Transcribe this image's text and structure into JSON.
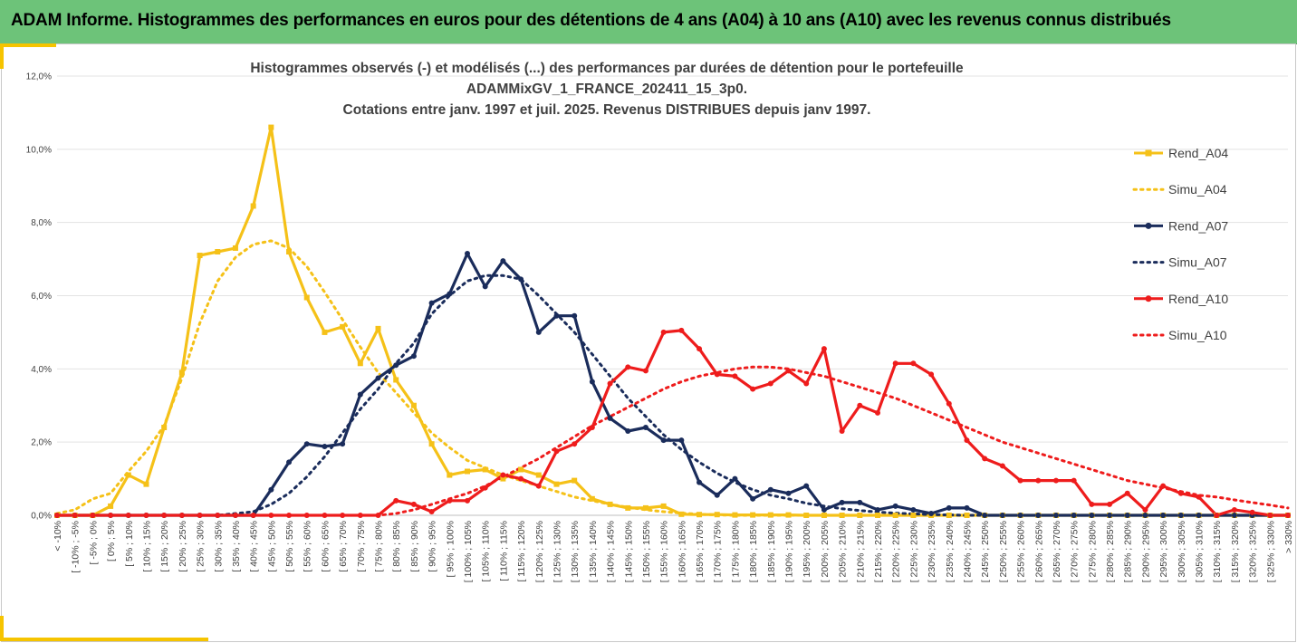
{
  "header": {
    "title": "ADAM Informe. Histogrammes des performances en euros pour des détentions de 4 ans (A04) à 10 ans (A10) avec les revenus connus distribués"
  },
  "chart_data": {
    "type": "line",
    "title_lines": [
      "Histogrammes observés (-) et modélisés (...) des performances par durées de détention pour le portefeuille",
      "ADAMMixGV_1_FRANCE_202411_15_3p0.",
      "Cotations entre janv. 1997 et juil. 2025. Revenus DISTRIBUES depuis janv 1997."
    ],
    "ylim": [
      0,
      12
    ],
    "y_ticks": [
      "0,0%",
      "2,0%",
      "4,0%",
      "6,0%",
      "8,0%",
      "10,0%",
      "12,0%"
    ],
    "y_tick_values": [
      0,
      2,
      4,
      6,
      8,
      10,
      12
    ],
    "grid": "horizontal",
    "legend_position": "right",
    "categories": [
      "< -10%",
      "[ -10% ; -5%",
      "[ -5% ; 0%",
      "[ 0% ; 5%",
      "[ 5% ; 10%",
      "[ 10% ; 15%",
      "[ 15% ; 20%",
      "[ 20% ; 25%",
      "[ 25% ; 30%",
      "[ 30% ; 35%",
      "[ 35% ; 40%",
      "[ 40% ; 45%",
      "[ 45% ; 50%",
      "[ 50% ; 55%",
      "[ 55% ; 60%",
      "[ 60% ; 65%",
      "[ 65% ; 70%",
      "[ 70% ; 75%",
      "[ 75% ; 80%",
      "[ 80% ; 85%",
      "[ 85% ; 90%",
      "[ 90% ; 95%",
      "[ 95% ; 100%",
      "[ 100% ; 105%",
      "[ 105% ; 110%",
      "[ 110% ; 115%",
      "[ 115% ; 120%",
      "[ 120% ; 125%",
      "[ 125% ; 130%",
      "[ 130% ; 135%",
      "[ 135% ; 140%",
      "[ 140% ; 145%",
      "[ 145% ; 150%",
      "[ 150% ; 155%",
      "[ 155% ; 160%",
      "[ 160% ; 165%",
      "[ 165% ; 170%",
      "[ 170% ; 175%",
      "[ 175% ; 180%",
      "[ 180% ; 185%",
      "[ 185% ; 190%",
      "[ 190% ; 195%",
      "[ 195% ; 200%",
      "[ 200% ; 205%",
      "[ 205% ; 210%",
      "[ 210% ; 215%",
      "[ 215% ; 220%",
      "[ 220% ; 225%",
      "[ 225% ; 230%",
      "[ 230% ; 235%",
      "[ 235% ; 240%",
      "[ 240% ; 245%",
      "[ 245% ; 250%",
      "[ 250% ; 255%",
      "[ 255% ; 260%",
      "[ 260% ; 265%",
      "[ 265% ; 270%",
      "[ 270% ; 275%",
      "[ 275% ; 280%",
      "[ 280% ; 285%",
      "[ 285% ; 290%",
      "[ 290% ; 295%",
      "[ 295% ; 300%",
      "[ 300% ; 305%",
      "[ 305% ; 310%",
      "[ 310% ; 315%",
      "[ 315% ; 320%",
      "[ 320% ; 325%",
      "[ 325% ; 330%",
      "> 330%"
    ],
    "series": [
      {
        "name": "Rend_A04",
        "color": "#f5c118",
        "style": "solid",
        "marker": "square",
        "values": [
          0,
          0,
          0,
          0.25,
          1.1,
          0.85,
          2.4,
          3.9,
          7.1,
          7.2,
          7.3,
          8.45,
          10.6,
          7.2,
          5.95,
          5.0,
          5.15,
          4.15,
          5.1,
          3.7,
          3.0,
          1.95,
          1.1,
          1.2,
          1.25,
          1.0,
          1.25,
          1.1,
          0.85,
          0.95,
          0.45,
          0.3,
          0.2,
          0.2,
          0.25,
          0.03,
          0.02,
          0.02,
          0.01,
          0.01,
          0.01,
          0.01,
          0,
          0,
          0,
          0,
          0,
          0,
          0,
          0,
          0,
          0,
          0,
          0,
          0,
          0,
          0,
          0,
          0,
          0,
          0,
          0,
          0,
          0,
          0,
          0,
          0,
          0,
          0,
          0
        ]
      },
      {
        "name": "Simu_A04",
        "color": "#f5c118",
        "style": "dotted",
        "marker": "none",
        "values": [
          0.05,
          0.15,
          0.45,
          0.6,
          1.2,
          1.75,
          2.45,
          3.75,
          5.25,
          6.4,
          7.05,
          7.4,
          7.5,
          7.3,
          6.8,
          6.1,
          5.35,
          4.6,
          3.9,
          3.35,
          2.8,
          2.25,
          1.85,
          1.5,
          1.3,
          1.1,
          0.95,
          0.8,
          0.65,
          0.5,
          0.4,
          0.3,
          0.22,
          0.15,
          0.1,
          0.06,
          0.03,
          0.01,
          0,
          0,
          0,
          0,
          0,
          0,
          0,
          0,
          0,
          0,
          0,
          0,
          0,
          0,
          0,
          0,
          0,
          0,
          0,
          0,
          0,
          0,
          0,
          0,
          0,
          0,
          0,
          0,
          0,
          0,
          0,
          0
        ]
      },
      {
        "name": "Rend_A07",
        "color": "#1a2c5b",
        "style": "solid",
        "marker": "circle",
        "values": [
          0,
          0,
          0,
          0,
          0,
          0,
          0,
          0,
          0,
          0,
          0,
          0,
          0.7,
          1.45,
          1.95,
          1.88,
          1.95,
          3.3,
          3.75,
          4.1,
          4.35,
          5.8,
          6.05,
          7.15,
          6.25,
          6.95,
          6.45,
          5.0,
          5.45,
          5.45,
          3.65,
          2.65,
          2.3,
          2.4,
          2.05,
          2.05,
          0.9,
          0.55,
          1.0,
          0.45,
          0.7,
          0.6,
          0.8,
          0.15,
          0.35,
          0.35,
          0.15,
          0.25,
          0.15,
          0.05,
          0.2,
          0.2,
          0,
          0,
          0,
          0,
          0,
          0,
          0,
          0,
          0,
          0,
          0,
          0,
          0,
          0,
          0,
          0,
          0,
          0
        ]
      },
      {
        "name": "Simu_A07",
        "color": "#1a2c5b",
        "style": "dotted",
        "marker": "none",
        "values": [
          0,
          0,
          0,
          0,
          0,
          0,
          0,
          0,
          0,
          0,
          0.05,
          0.1,
          0.3,
          0.6,
          1.05,
          1.6,
          2.25,
          2.9,
          3.45,
          4.15,
          4.7,
          5.5,
          6.0,
          6.4,
          6.55,
          6.55,
          6.45,
          6.0,
          5.5,
          5.0,
          4.4,
          3.8,
          3.2,
          2.7,
          2.2,
          1.8,
          1.45,
          1.15,
          0.9,
          0.7,
          0.55,
          0.45,
          0.33,
          0.25,
          0.18,
          0.13,
          0.09,
          0.06,
          0.04,
          0.02,
          0.01,
          0,
          0,
          0,
          0,
          0,
          0,
          0,
          0,
          0,
          0,
          0,
          0,
          0,
          0,
          0,
          0,
          0,
          0,
          0
        ]
      },
      {
        "name": "Rend_A10",
        "color": "#ee1c1c",
        "style": "solid",
        "marker": "circle",
        "values": [
          0,
          0,
          0,
          0,
          0,
          0,
          0,
          0,
          0,
          0,
          0,
          0,
          0,
          0,
          0,
          0,
          0,
          0,
          0,
          0.4,
          0.3,
          0.1,
          0.4,
          0.4,
          0.75,
          1.1,
          1.0,
          0.8,
          1.75,
          1.95,
          2.4,
          3.6,
          4.05,
          3.95,
          5.0,
          5.05,
          4.55,
          3.85,
          3.8,
          3.45,
          3.6,
          3.95,
          3.6,
          4.55,
          2.3,
          3.0,
          2.8,
          4.15,
          4.15,
          3.85,
          3.05,
          2.05,
          1.55,
          1.35,
          0.95,
          0.95,
          0.95,
          0.95,
          0.3,
          0.3,
          0.6,
          0.15,
          0.8,
          0.6,
          0.5,
          0.0,
          0.15,
          0.08,
          0,
          0
        ]
      },
      {
        "name": "Simu_A10",
        "color": "#ee1c1c",
        "style": "dotted",
        "marker": "none",
        "values": [
          0,
          0,
          0,
          0,
          0,
          0,
          0,
          0,
          0,
          0,
          0,
          0,
          0,
          0,
          0,
          0,
          0,
          0,
          0,
          0.05,
          0.15,
          0.3,
          0.45,
          0.6,
          0.8,
          1.05,
          1.3,
          1.55,
          1.85,
          2.15,
          2.45,
          2.7,
          2.95,
          3.2,
          3.45,
          3.65,
          3.8,
          3.9,
          4.0,
          4.05,
          4.05,
          4.0,
          3.9,
          3.8,
          3.65,
          3.5,
          3.35,
          3.2,
          3.0,
          2.8,
          2.6,
          2.4,
          2.2,
          2.0,
          1.85,
          1.7,
          1.55,
          1.4,
          1.25,
          1.1,
          0.95,
          0.85,
          0.75,
          0.65,
          0.55,
          0.5,
          0.42,
          0.35,
          0.28,
          0.2
        ]
      }
    ]
  }
}
